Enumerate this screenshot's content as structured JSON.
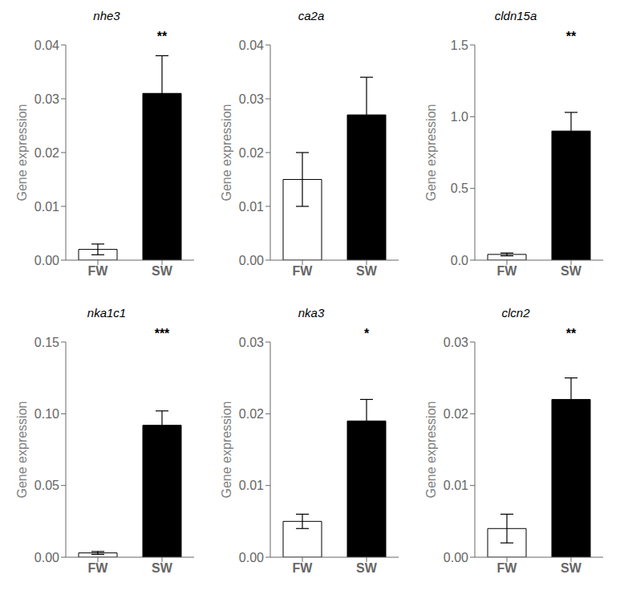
{
  "chart_data": [
    {
      "type": "bar",
      "title": "nhe3",
      "y_label": "Gene expression",
      "categories": [
        "FW",
        "SW"
      ],
      "values": [
        0.002,
        0.031
      ],
      "errors": [
        0.001,
        0.007
      ],
      "colors": [
        "white",
        "black"
      ],
      "ylim": [
        0,
        0.04
      ],
      "yticks": [
        {
          "value": 0,
          "label": "0.00"
        },
        0.01,
        0.02,
        0.03,
        0.04
      ],
      "annotation": "**",
      "grid": false
    },
    {
      "type": "bar",
      "title": "ca2a",
      "y_label": "Gene expression",
      "categories": [
        "FW",
        "SW"
      ],
      "values": [
        0.015,
        0.027
      ],
      "errors": [
        0.005,
        0.007
      ],
      "colors": [
        "white",
        "black"
      ],
      "ylim": [
        0,
        0.04
      ],
      "yticks": [
        {
          "value": 0,
          "label": "0.00"
        },
        0.01,
        0.02,
        0.03,
        0.04
      ],
      "grid": false
    },
    {
      "type": "bar",
      "title": "cldn15a",
      "y_label": "Gene expression",
      "categories": [
        "FW",
        "SW"
      ],
      "values": [
        0.04,
        0.9
      ],
      "errors": [
        0.01,
        0.13
      ],
      "colors": [
        "white",
        "black"
      ],
      "ylim": [
        0,
        1.5
      ],
      "yticks": [
        {
          "value": 0,
          "label": "0.0"
        },
        0.5,
        {
          "value": 1,
          "label": "1.0"
        },
        1.5
      ],
      "annotation": "**",
      "grid": false
    },
    {
      "type": "bar",
      "title": "nka1c1",
      "y_label": "Gene expression",
      "categories": [
        "FW",
        "SW"
      ],
      "values": [
        0.003,
        0.092
      ],
      "errors": [
        0.001,
        0.01
      ],
      "colors": [
        "white",
        "black"
      ],
      "ylim": [
        0,
        0.15
      ],
      "yticks": [
        {
          "value": 0,
          "label": "0.00"
        },
        0.05,
        {
          "value": 0.1,
          "label": "0.10"
        },
        0.15
      ],
      "annotation": "***",
      "grid": false
    },
    {
      "type": "bar",
      "title": "nka3",
      "y_label": "Gene expression",
      "categories": [
        "FW",
        "SW"
      ],
      "values": [
        0.005,
        0.019
      ],
      "errors": [
        0.001,
        0.003
      ],
      "colors": [
        "white",
        "black"
      ],
      "ylim": [
        0,
        0.03
      ],
      "yticks": [
        {
          "value": 0,
          "label": "0.00"
        },
        0.01,
        0.02,
        0.03
      ],
      "annotation": "*",
      "grid": false
    },
    {
      "type": "bar",
      "title": "clcn2",
      "y_label": "Gene expression",
      "categories": [
        "FW",
        "SW"
      ],
      "values": [
        0.004,
        0.022
      ],
      "errors": [
        0.002,
        0.003
      ],
      "colors": [
        "white",
        "black"
      ],
      "ylim": [
        0,
        0.03
      ],
      "yticks": [
        {
          "value": 0,
          "label": "0.00"
        },
        0.01,
        0.02,
        0.03
      ],
      "annotation": "**",
      "grid": false
    }
  ]
}
